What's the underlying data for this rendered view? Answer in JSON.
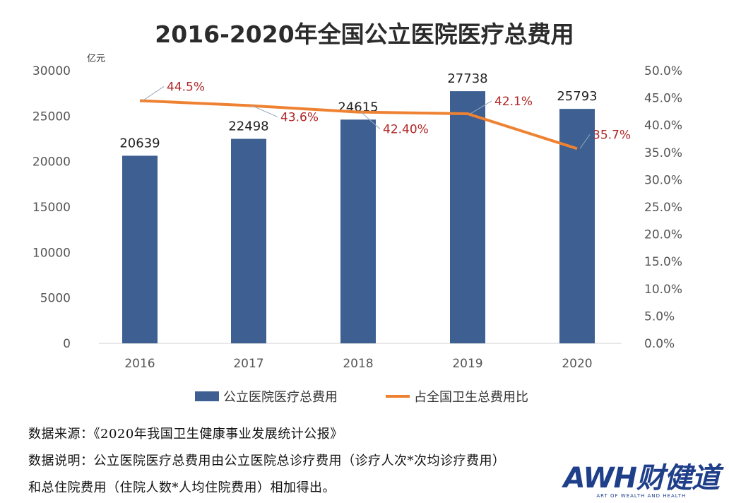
{
  "chart_data": {
    "type": "bar+line",
    "title": "2016-2020年全国公立医院医疗总费用",
    "y_unit": "亿元",
    "categories": [
      "2016",
      "2017",
      "2018",
      "2019",
      "2020"
    ],
    "ylim": [
      0,
      30000
    ],
    "y_ticks": [
      "0",
      "5000",
      "10000",
      "15000",
      "20000",
      "25000",
      "30000"
    ],
    "y2lim": [
      0,
      50
    ],
    "y2_ticks": [
      "0.0%",
      "5.0%",
      "10.0%",
      "15.0%",
      "20.0%",
      "25.0%",
      "30.0%",
      "35.0%",
      "40.0%",
      "45.0%",
      "50.0%"
    ],
    "series": [
      {
        "name": "公立医院医疗总费用",
        "type": "bar",
        "values": [
          20639,
          22498,
          24615,
          27738,
          25793
        ],
        "labels": [
          "20639",
          "22498",
          "24615",
          "27738",
          "25793"
        ],
        "color": "#3d5f91"
      },
      {
        "name": "占全国卫生总费用比",
        "type": "line",
        "axis": "right",
        "values": [
          44.5,
          43.6,
          42.4,
          42.1,
          35.7
        ],
        "labels": [
          "44.5%",
          "43.6%",
          "42.40%",
          "42.1%",
          "35.7%"
        ],
        "color": "#ee8232"
      }
    ],
    "legend_position": "bottom",
    "grid": false
  },
  "notes": {
    "source": "数据来源：《2020年我国卫生健康事业发展统计公报》",
    "explain_1": "数据说明：公立医院医疗总费用由公立医院总诊疗费用（诊疗人次*次均诊疗费用）",
    "explain_2": "和总住院费用（住院人数*人均住院费用）相加得出。"
  },
  "logo": {
    "main": "AWH财健道",
    "sub": "ART OF WEALTH AND HEALTH"
  }
}
